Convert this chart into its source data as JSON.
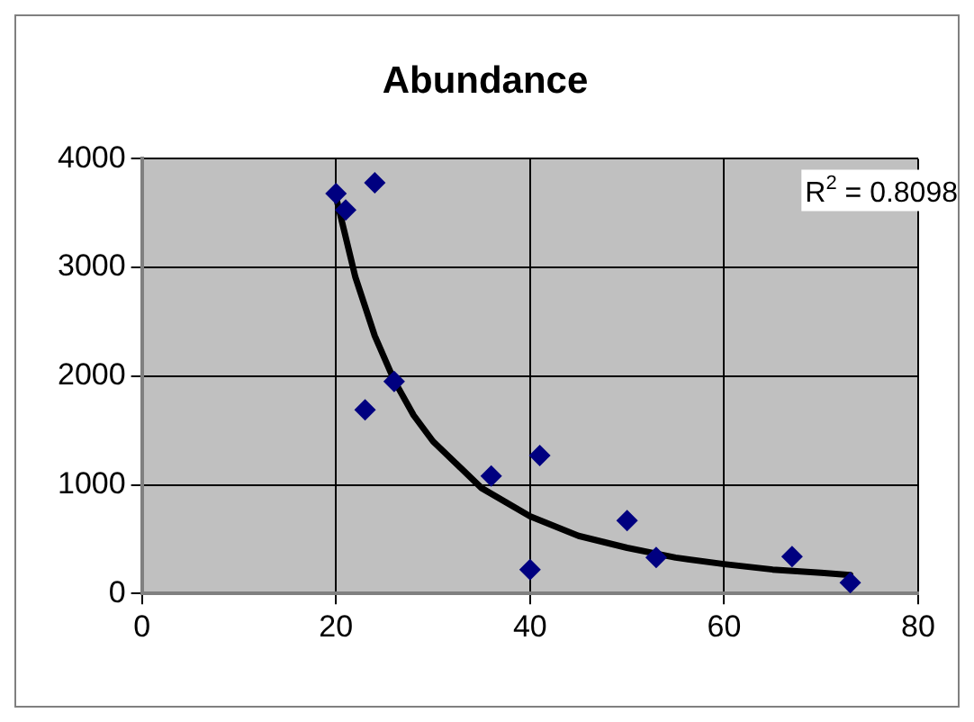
{
  "chart_data": {
    "type": "scatter",
    "title": "Abundance",
    "marker": "diamond",
    "grid": true,
    "legend": false,
    "xlim": [
      0,
      80
    ],
    "xticks": [
      0,
      20,
      40,
      60,
      80
    ],
    "ylim": [
      0,
      4000
    ],
    "yticks": [
      0,
      1000,
      2000,
      3000,
      4000
    ],
    "annotations": [
      "R$^{2}$ = 0.8098"
    ],
    "series": [
      {
        "color": "#000080",
        "x": [
          20,
          21,
          24,
          23,
          26,
          36,
          40,
          41,
          50,
          53,
          67,
          73
        ],
        "values": [
          3680,
          3530,
          3780,
          1690,
          1950,
          1080,
          220,
          1270,
          670,
          330,
          340,
          100
        ]
      },
      {
        "type": "line",
        "color": "#000000",
        "marker": "none",
        "x": [
          20,
          22,
          24,
          26,
          28,
          30,
          35,
          40,
          45,
          50,
          55,
          60,
          65,
          70,
          73
        ],
        "values": [
          3650,
          2910,
          2370,
          1960,
          1640,
          1400,
          970,
          710,
          530,
          420,
          330,
          270,
          220,
          190,
          170
        ]
      }
    ]
  }
}
